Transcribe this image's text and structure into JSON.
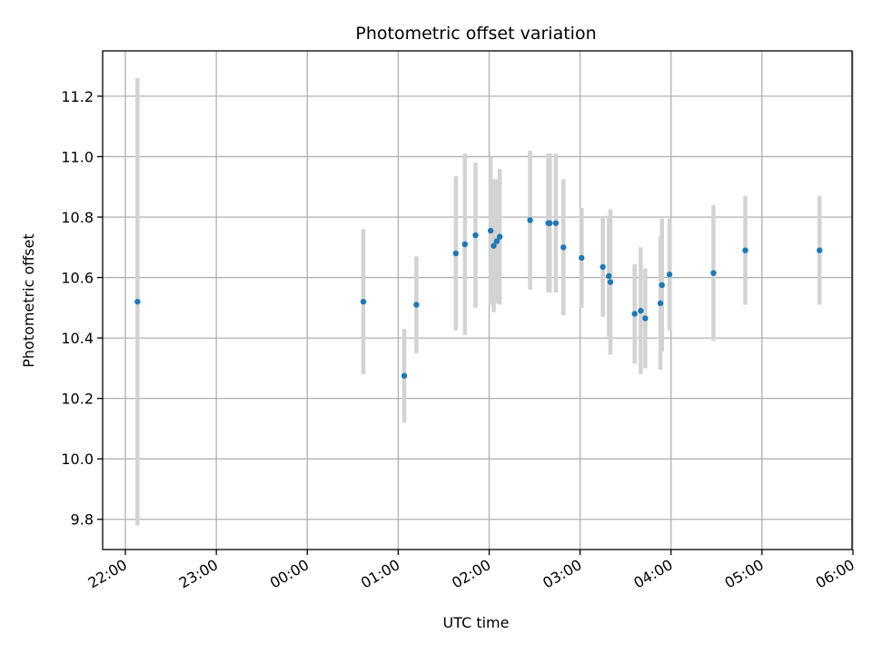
{
  "chart_data": {
    "type": "scatter",
    "title": "Photometric offset variation",
    "xlabel": "UTC time",
    "ylabel": "Photometric offset",
    "x_ticks": [
      "22:00",
      "23:00",
      "00:00",
      "01:00",
      "02:00",
      "03:00",
      "04:00",
      "05:00",
      "06:00"
    ],
    "y_ticks": [
      "9.8",
      "10.0",
      "10.2",
      "10.4",
      "10.6",
      "10.8",
      "11.0",
      "11.2"
    ],
    "xlim_hours_from_first_tick": [
      -0.25,
      7.99
    ],
    "ylim": [
      9.7,
      11.35
    ],
    "grid": true,
    "colors": {
      "point": "#1f77b4",
      "errorbar": "#d3d3d3",
      "grid": "#b0b0b0"
    },
    "points": [
      {
        "t": "22:08",
        "y": 10.52,
        "err": 0.74
      },
      {
        "t": "00:37",
        "y": 10.52,
        "err": 0.24
      },
      {
        "t": "01:04",
        "y": 10.275,
        "err": 0.155
      },
      {
        "t": "01:12",
        "y": 10.51,
        "err": 0.16
      },
      {
        "t": "01:38",
        "y": 10.68,
        "err": 0.255
      },
      {
        "t": "01:44",
        "y": 10.71,
        "err": 0.3
      },
      {
        "t": "01:51",
        "y": 10.74,
        "err": 0.24
      },
      {
        "t": "02:01",
        "y": 10.755,
        "err": 0.245
      },
      {
        "t": "02:03",
        "y": 10.705,
        "err": 0.22
      },
      {
        "t": "02:05",
        "y": 10.72,
        "err": 0.205
      },
      {
        "t": "02:07",
        "y": 10.735,
        "err": 0.225
      },
      {
        "t": "02:27",
        "y": 10.79,
        "err": 0.23
      },
      {
        "t": "02:39",
        "y": 10.78,
        "err": 0.23
      },
      {
        "t": "02:40",
        "y": 10.78,
        "err": 0.23
      },
      {
        "t": "02:44",
        "y": 10.78,
        "err": 0.23
      },
      {
        "t": "02:49",
        "y": 10.7,
        "err": 0.225
      },
      {
        "t": "03:01",
        "y": 10.665,
        "err": 0.165
      },
      {
        "t": "03:15",
        "y": 10.635,
        "err": 0.165
      },
      {
        "t": "03:19",
        "y": 10.605,
        "err": 0.2
      },
      {
        "t": "03:20",
        "y": 10.585,
        "err": 0.24
      },
      {
        "t": "03:36",
        "y": 10.48,
        "err": 0.165
      },
      {
        "t": "03:40",
        "y": 10.49,
        "err": 0.21
      },
      {
        "t": "03:43",
        "y": 10.465,
        "err": 0.165
      },
      {
        "t": "03:53",
        "y": 10.515,
        "err": 0.22
      },
      {
        "t": "03:54",
        "y": 10.575,
        "err": 0.22
      },
      {
        "t": "03:59",
        "y": 10.61,
        "err": 0.185
      },
      {
        "t": "04:28",
        "y": 10.615,
        "err": 0.225
      },
      {
        "t": "04:49",
        "y": 10.69,
        "err": 0.18
      },
      {
        "t": "05:38",
        "y": 10.69,
        "err": 0.18
      }
    ]
  }
}
